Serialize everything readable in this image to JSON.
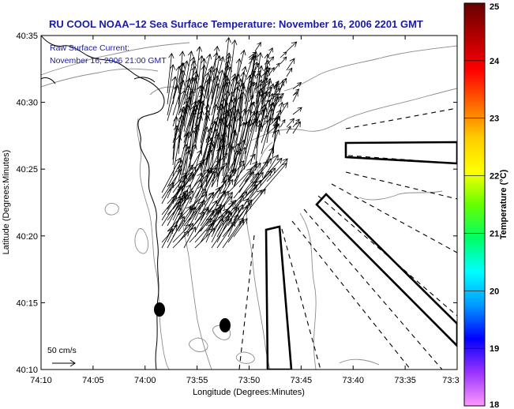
{
  "title": "RU COOL  NOAA−12  Sea Surface Temperature:  November 16, 2006 2201 GMT",
  "note_line1": "Raw Surface Current:",
  "note_line2": "November 16, 2006 21:00 GMT",
  "xlabel": "Longitude (Degrees:Minutes)",
  "ylabel": "Latitude (Degrees:Minutes)",
  "scale_label": "50 cm/s",
  "colorbar": {
    "label": "Temperature (°C)",
    "min": 18,
    "max": 25,
    "ticks": [
      "18",
      "19",
      "20",
      "21",
      "22",
      "23",
      "24",
      "25"
    ],
    "colors": [
      "#ff99ff",
      "#9933ff",
      "#0000ff",
      "#0099ff",
      "#00ffff",
      "#00ff66",
      "#66ff00",
      "#ffff00",
      "#ffcc00",
      "#ff6600",
      "#ff0000",
      "#b30000",
      "#660000"
    ]
  },
  "map": {
    "x_ticks": [
      "74:10",
      "74:05",
      "74:00",
      "73:55",
      "73:50",
      "73:45",
      "73:40",
      "73:35",
      "73:3"
    ],
    "y_ticks": [
      "40:35",
      "40:30",
      "40:25",
      "40:20",
      "40:15",
      "40:10"
    ],
    "lon_range_min": [
      -74.1667,
      -73.5
    ],
    "lat_range_deg": [
      40.1667,
      40.5833
    ]
  }
}
